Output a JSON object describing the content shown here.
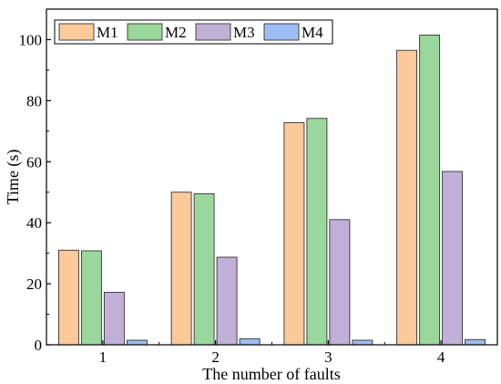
{
  "chart_data": {
    "type": "bar",
    "title": "",
    "xlabel": "The number of faults",
    "ylabel": "Time (s)",
    "ylim": [
      0,
      110
    ],
    "yticks": [
      0,
      20,
      40,
      60,
      80,
      100
    ],
    "grid": false,
    "legend_position": "top-left",
    "categories": [
      "1",
      "2",
      "3",
      "4"
    ],
    "series": [
      {
        "name": "M1",
        "color": "#FCC99B",
        "values": [
          31.0,
          50.0,
          72.8,
          96.5
        ]
      },
      {
        "name": "M2",
        "color": "#9AD79C",
        "values": [
          30.8,
          49.5,
          74.2,
          101.5
        ]
      },
      {
        "name": "M3",
        "color": "#C0B0D8",
        "values": [
          17.2,
          28.7,
          41.0,
          56.8
        ]
      },
      {
        "name": "M4",
        "color": "#9BBDF2",
        "values": [
          1.5,
          2.0,
          1.5,
          1.7
        ]
      }
    ]
  }
}
